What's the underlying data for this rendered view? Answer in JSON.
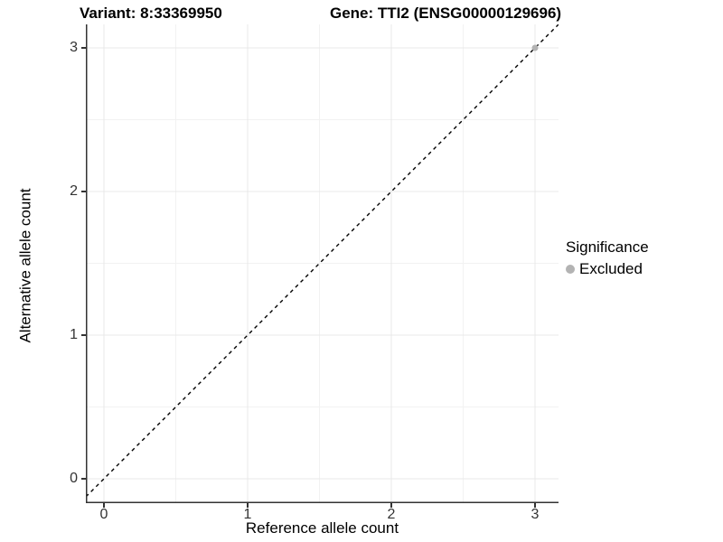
{
  "titles": {
    "variant": "Variant: 8:33369950",
    "gene": "Gene: TTI2 (ENSG00000129696)"
  },
  "legend": {
    "title": "Significance",
    "items": [
      {
        "label": "Excluded",
        "color": "#b3b3b3"
      }
    ]
  },
  "chart_data": {
    "type": "scatter",
    "title": "Variant: 8:33369950",
    "subtitle": "Gene: TTI2 (ENSG00000129696)",
    "xlabel": "Reference allele count",
    "ylabel": "Alternative allele count",
    "xlim": [
      -0.13,
      3.17
    ],
    "ylim": [
      -0.17,
      3.17
    ],
    "x_ticks": [
      0,
      1,
      2,
      3
    ],
    "y_ticks": [
      0,
      1,
      2,
      3
    ],
    "x_minor_ticks": [
      0.5,
      1.5,
      2.5
    ],
    "y_minor_ticks": [
      0.5,
      1.5,
      2.5
    ],
    "grid": true,
    "legend_position": "right",
    "series": [
      {
        "name": "Excluded",
        "color": "#b3b3b3",
        "points": [
          {
            "x": 3,
            "y": 3
          }
        ]
      }
    ],
    "reference_line": {
      "type": "identity",
      "style": "dashed",
      "color": "#000000"
    },
    "colors": {
      "axis_line": "#333333",
      "grid_major": "#e8e8e8",
      "grid_minor": "#f2f2f2",
      "tick_text": "#333333"
    }
  }
}
